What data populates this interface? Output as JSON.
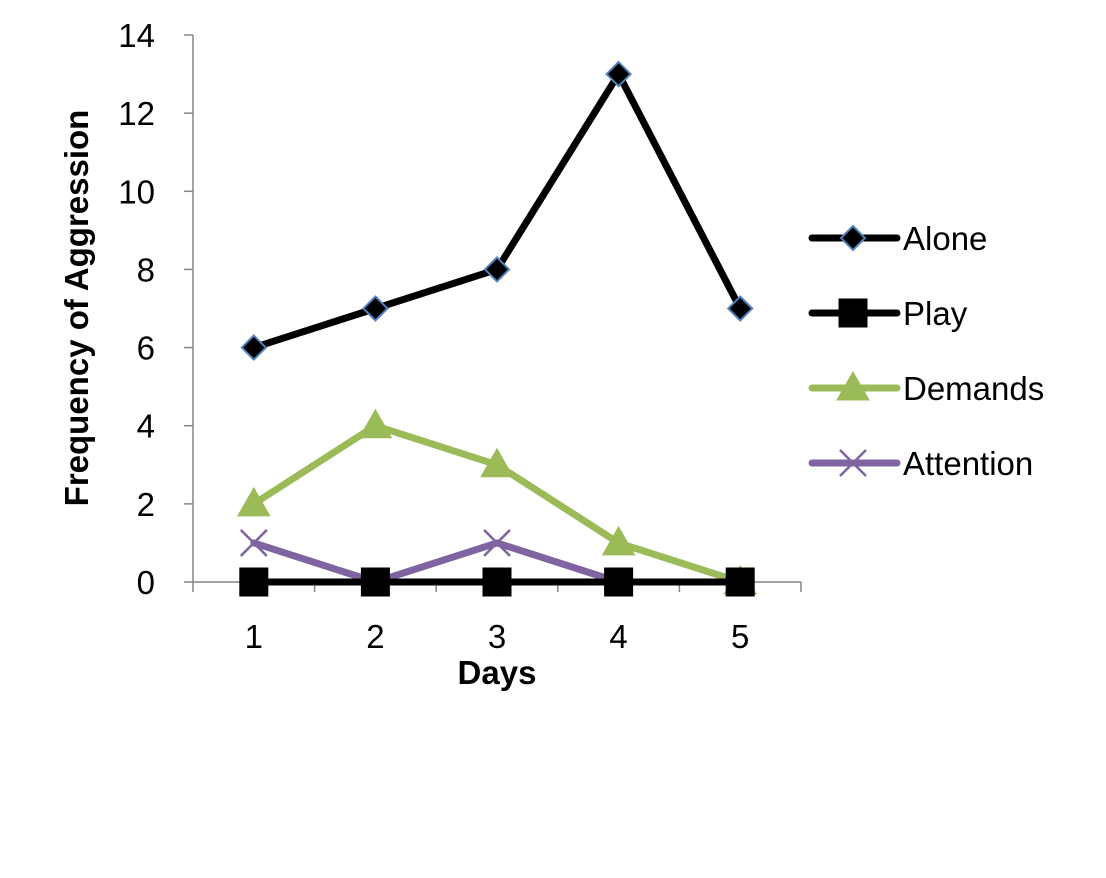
{
  "chart_data": {
    "type": "line",
    "title": "",
    "xlabel": "Days",
    "ylabel": "Frequency of Aggression",
    "x": [
      1,
      2,
      3,
      4,
      5
    ],
    "categories": [
      "1",
      "2",
      "3",
      "4",
      "5"
    ],
    "ylim": [
      0,
      14
    ],
    "yticks": [
      0,
      2,
      4,
      6,
      8,
      10,
      12,
      14
    ],
    "grid": false,
    "legend_position": "right",
    "series": [
      {
        "name": "Alone",
        "values": [
          6,
          7,
          8,
          13,
          7
        ],
        "color": "#000000",
        "marker": "diamond",
        "marker_fill": "#000000",
        "marker_stroke": "#4f81bd"
      },
      {
        "name": "Play",
        "values": [
          0,
          0,
          0,
          0,
          0
        ],
        "color": "#000000",
        "marker": "square",
        "marker_fill": "#000000",
        "marker_stroke": "#000000"
      },
      {
        "name": "Demands",
        "values": [
          2,
          4,
          3,
          1,
          0
        ],
        "color": "#9bbb59",
        "marker": "triangle",
        "marker_fill": "#9bbb59",
        "marker_stroke": "#9bbb59"
      },
      {
        "name": "Attention",
        "values": [
          1,
          0,
          1,
          0,
          0
        ],
        "color": "#8064a2",
        "marker": "x",
        "marker_fill": "none",
        "marker_stroke": "#8064a2"
      }
    ]
  }
}
